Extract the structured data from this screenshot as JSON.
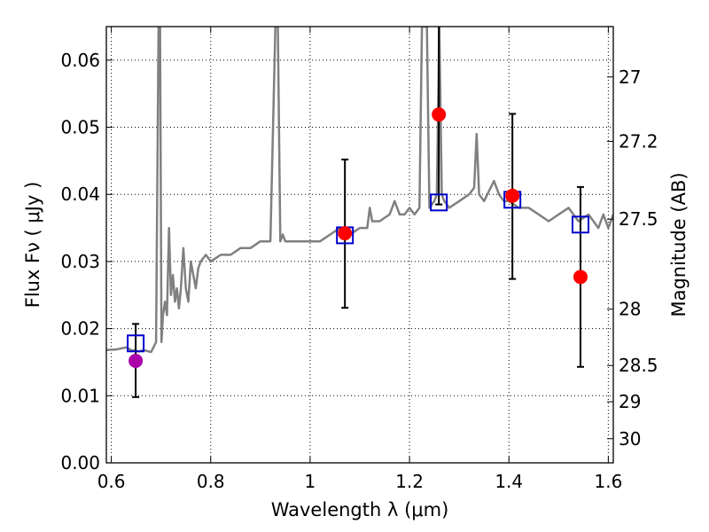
{
  "chart_data": {
    "type": "scatter",
    "title": "",
    "xlabel": "Wavelength  λ (μm)",
    "ylabel": "Flux  Fν  ( μJy )",
    "y2label": "Magnitude (AB)",
    "xlim": [
      0.59,
      1.61
    ],
    "ylim": [
      0.0,
      0.065
    ],
    "grid": true,
    "x_ticks": [
      0.6,
      0.8,
      1.0,
      1.2,
      1.4,
      1.6
    ],
    "x_tick_labels": [
      "0.6",
      "0.8",
      "1",
      "1.2",
      "1.4",
      "1.6"
    ],
    "y_ticks": [
      0.0,
      0.01,
      0.02,
      0.03,
      0.04,
      0.05,
      0.06
    ],
    "y_tick_labels": [
      "0.00",
      "0.01",
      "0.02",
      "0.03",
      "0.04",
      "0.05",
      "0.06"
    ],
    "y2_ticks": [
      {
        "label": "27",
        "flux": 0.0575
      },
      {
        "label": "27.2",
        "flux": 0.0479
      },
      {
        "label": "27.5",
        "flux": 0.0363
      },
      {
        "label": "28",
        "flux": 0.0229
      },
      {
        "label": "28.5",
        "flux": 0.0145
      },
      {
        "label": "29",
        "flux": 0.0091
      },
      {
        "label": "30",
        "flux": 0.0036
      }
    ],
    "colors": {
      "spectrum": "#808080",
      "model": "#0000cc",
      "observed": "#ff0000",
      "observed_first": "#aa00aa",
      "errorbar": "#000000"
    },
    "series": [
      {
        "type": "line",
        "x": [
          0.59,
          0.61,
          0.63,
          0.64,
          0.655,
          0.665,
          0.68,
          0.69,
          0.695,
          0.698,
          0.701,
          0.704,
          0.708,
          0.712,
          0.716,
          0.72,
          0.724,
          0.728,
          0.732,
          0.736,
          0.74,
          0.745,
          0.75,
          0.755,
          0.76,
          0.765,
          0.77,
          0.775,
          0.78,
          0.79,
          0.8,
          0.82,
          0.84,
          0.86,
          0.88,
          0.9,
          0.92,
          0.93,
          0.935,
          0.94,
          0.945,
          0.95,
          0.97,
          1.0,
          1.02,
          1.04,
          1.06,
          1.08,
          1.1,
          1.115,
          1.12,
          1.125,
          1.14,
          1.16,
          1.17,
          1.18,
          1.19,
          1.2,
          1.21,
          1.22,
          1.225,
          1.23,
          1.235,
          1.24,
          1.25,
          1.255,
          1.26,
          1.265,
          1.27,
          1.28,
          1.3,
          1.32,
          1.33,
          1.335,
          1.34,
          1.35,
          1.37,
          1.38,
          1.39,
          1.4,
          1.42,
          1.44,
          1.46,
          1.48,
          1.5,
          1.52,
          1.54,
          1.56,
          1.58,
          1.59,
          1.6,
          1.61
        ],
        "values": [
          0.0168,
          0.0169,
          0.0172,
          0.0168,
          0.0166,
          0.0168,
          0.0165,
          0.018,
          0.065,
          0.065,
          0.018,
          0.022,
          0.024,
          0.022,
          0.035,
          0.025,
          0.028,
          0.024,
          0.026,
          0.023,
          0.026,
          0.032,
          0.026,
          0.024,
          0.03,
          0.028,
          0.026,
          0.029,
          0.03,
          0.031,
          0.03,
          0.031,
          0.031,
          0.032,
          0.032,
          0.033,
          0.033,
          0.065,
          0.065,
          0.033,
          0.034,
          0.033,
          0.033,
          0.033,
          0.033,
          0.034,
          0.035,
          0.034,
          0.035,
          0.035,
          0.038,
          0.036,
          0.036,
          0.037,
          0.039,
          0.037,
          0.037,
          0.038,
          0.037,
          0.038,
          0.065,
          0.065,
          0.065,
          0.038,
          0.039,
          0.04,
          0.065,
          0.04,
          0.039,
          0.038,
          0.039,
          0.04,
          0.041,
          0.049,
          0.04,
          0.039,
          0.042,
          0.04,
          0.039,
          0.039,
          0.038,
          0.038,
          0.037,
          0.036,
          0.037,
          0.038,
          0.036,
          0.037,
          0.035,
          0.037,
          0.035,
          0.037
        ]
      },
      {
        "type": "scatter",
        "marker": "square",
        "x": [
          0.649,
          1.07,
          1.259,
          1.407,
          1.544
        ],
        "values": [
          0.0178,
          0.0339,
          0.0388,
          0.0392,
          0.0355
        ]
      },
      {
        "type": "scatter",
        "marker": "circle",
        "x": [
          0.649,
          1.07,
          1.259,
          1.407,
          1.544
        ],
        "values": [
          0.0152,
          0.0342,
          0.0519,
          0.0398,
          0.0277
        ],
        "err_low": [
          0.0098,
          0.0231,
          0.0385,
          0.0274,
          0.0143
        ],
        "err_high": [
          0.0207,
          0.0452,
          0.065,
          0.052,
          0.0411
        ]
      }
    ]
  }
}
